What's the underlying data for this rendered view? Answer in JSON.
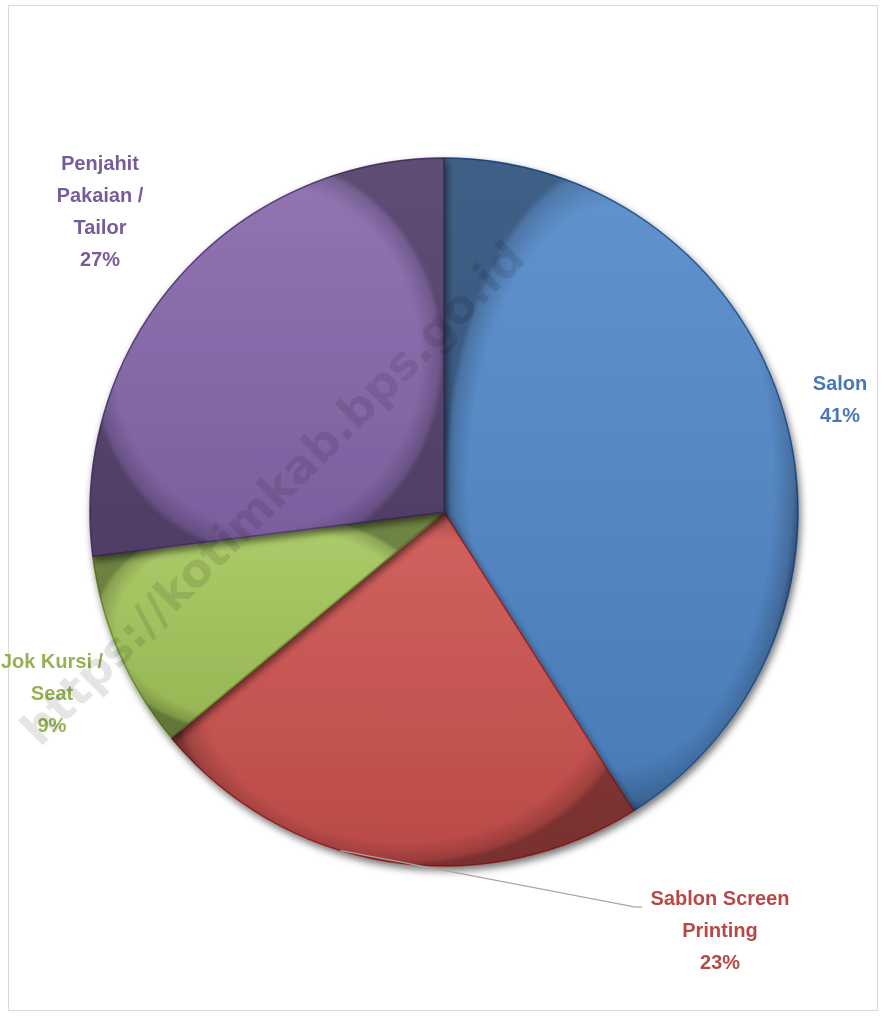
{
  "chart_data": {
    "type": "pie",
    "title": "",
    "slices": [
      {
        "name": "Salon",
        "label_lines": [
          "Salon",
          "41%"
        ],
        "value": 41,
        "color": "#4f81bd"
      },
      {
        "name": "Sablon Screen Printing",
        "label_lines": [
          "Sablon Screen",
          "Printing",
          "23%"
        ],
        "value": 23,
        "color": "#c0504d"
      },
      {
        "name": "Jok Kursi / Seat",
        "label_lines": [
          "Jok Kursi /",
          "Seat",
          "9%"
        ],
        "value": 9,
        "color": "#9bbb59"
      },
      {
        "name": "Penjahit Pakaian / Tailor",
        "label_lines": [
          "Penjahit",
          "Pakaian /",
          "Tailor",
          "27%"
        ],
        "value": 27,
        "color": "#8064a2"
      }
    ],
    "start_angle_deg": 0,
    "direction": "clockwise",
    "legend": "none",
    "data_labels": "outside"
  },
  "watermark": "https://kotimkab.bps.go.id"
}
